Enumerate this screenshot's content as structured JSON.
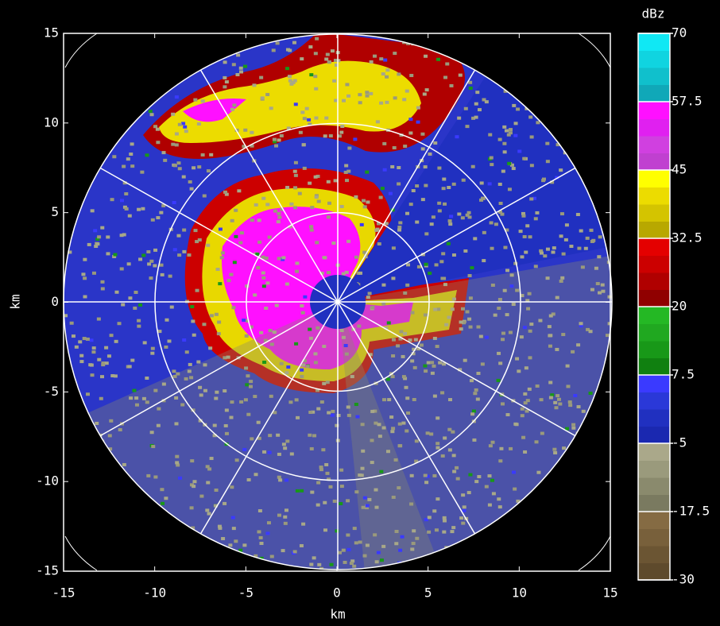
{
  "chart_data": {
    "type": "ppi",
    "xlabel": "km",
    "ylabel": "km",
    "xlim": [
      -15,
      15
    ],
    "ylim": [
      -15,
      15
    ],
    "xticks": [
      -15,
      -10,
      -5,
      0,
      5,
      10,
      15
    ],
    "yticks": [
      -15,
      -10,
      -5,
      0,
      5,
      10,
      15
    ],
    "grid": true,
    "grid_color": "#ffffff",
    "background": "#2a35c8",
    "colorbar": {
      "label": "dBz",
      "lim": [
        -30,
        70
      ],
      "ticks": [
        -30,
        -17.5,
        -5,
        7.5,
        20,
        32.5,
        45,
        57.5,
        70
      ],
      "colors": [
        "#5e4a2c",
        "#6b5533",
        "#78603b",
        "#856b43",
        "#7a7a60",
        "#8a8a6d",
        "#9a9a7c",
        "#aaa88a",
        "#1a28b0",
        "#2030c0",
        "#2a38d8",
        "#3a3aff",
        "#108010",
        "#189818",
        "#20a820",
        "#24b824",
        "#900000",
        "#b00000",
        "#cc0000",
        "#e40000",
        "#b8a800",
        "#d4c400",
        "#ecdc00",
        "#ffff00",
        "#c040d0",
        "#d040e0",
        "#e020f0",
        "#ff10ff",
        "#10a8b8",
        "#10c0cc",
        "#10d4e0",
        "#10e8f4"
      ]
    }
  }
}
